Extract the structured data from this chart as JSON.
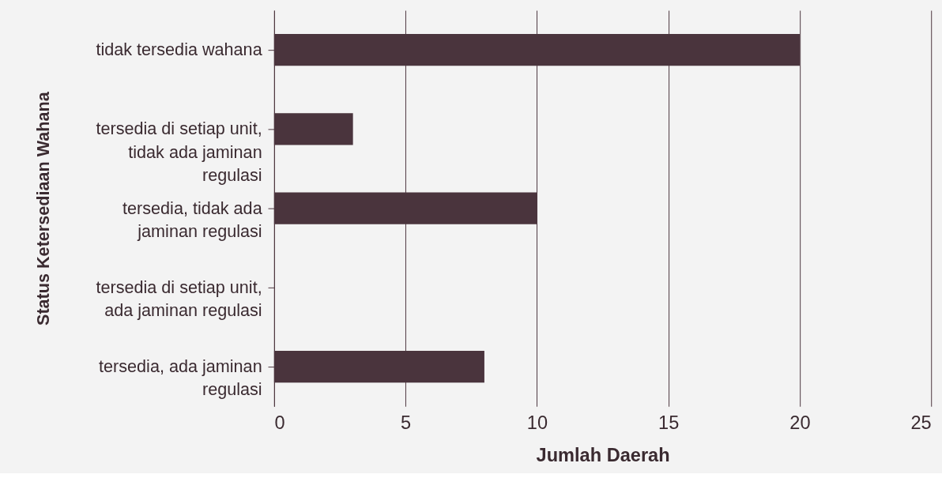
{
  "chart_data": {
    "type": "bar",
    "orientation": "horizontal",
    "xlabel": "Jumlah Daerah",
    "ylabel": "Status Ketersediaan Wahana",
    "categories": [
      "tidak tersedia wahana",
      "tersedia di setiap unit,\ntidak ada jaminan\nregulasi",
      "tersedia, tidak ada\njaminan regulasi",
      "tersedia di setiap unit,\nada jaminan regulasi",
      "tersedia, ada jaminan\nregulasi"
    ],
    "values": [
      20,
      3,
      10,
      0,
      8
    ],
    "color": "#4a343d",
    "xlim": [
      0,
      25
    ],
    "xticks": [
      0,
      5,
      10,
      15,
      20,
      25
    ],
    "grid": "x"
  }
}
